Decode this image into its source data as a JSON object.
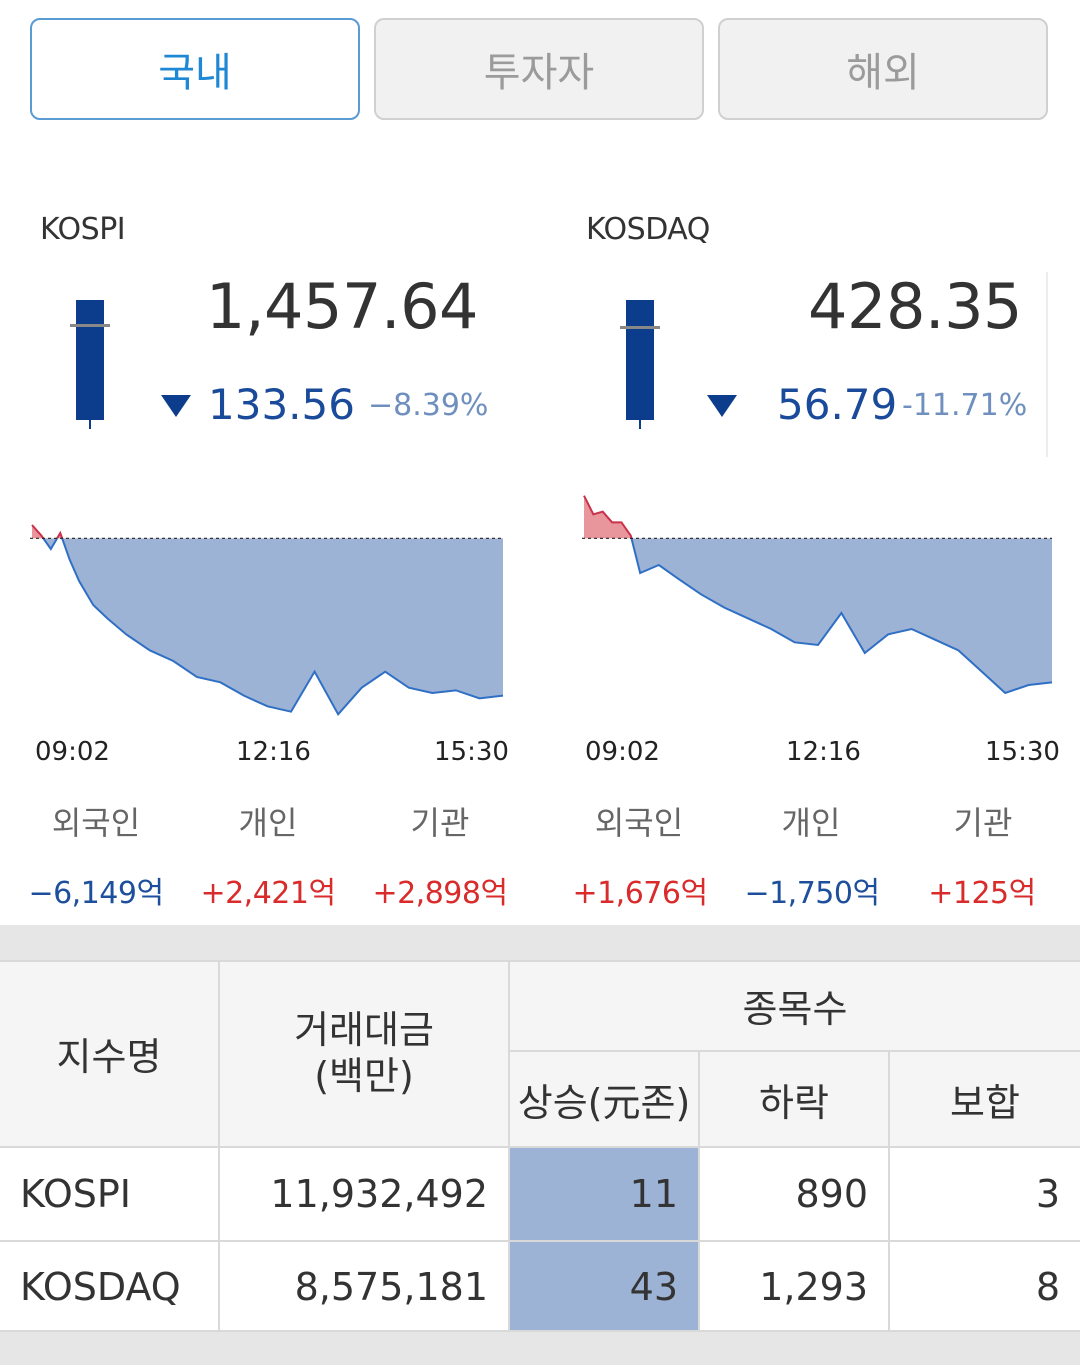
{
  "tabs": [
    {
      "label": "국내",
      "active": true
    },
    {
      "label": "투자자",
      "active": false
    },
    {
      "label": "해외",
      "active": false
    }
  ],
  "colors": {
    "accent": "#1e88d4",
    "down": "#1d4f9c",
    "up": "#d92b2b",
    "area_down": "#9db3d6",
    "area_up": "#e8959c"
  },
  "indices": [
    {
      "name": "KOSPI",
      "value": "1,457.64",
      "change": "133.56",
      "rate": "−8.39%",
      "times": [
        "09:02",
        "12:16",
        "15:30"
      ],
      "investors": [
        {
          "label": "외국인",
          "value": "−6,149억",
          "direction": "down"
        },
        {
          "label": "개인",
          "value": "+2,421억",
          "direction": "up"
        },
        {
          "label": "기관",
          "value": "+2,898억",
          "direction": "up"
        }
      ],
      "chart_data": {
        "type": "area",
        "x": [
          0,
          2,
          4,
          6,
          8,
          10,
          13,
          16,
          20,
          25,
          30,
          35,
          40,
          45,
          50,
          55,
          60,
          65,
          70,
          75,
          80,
          85,
          90,
          95,
          100
        ],
        "values": [
          0.5,
          0.1,
          -0.4,
          0.2,
          -0.8,
          -1.6,
          -2.5,
          -3.0,
          -3.6,
          -4.2,
          -4.6,
          -5.2,
          -5.4,
          -5.9,
          -6.3,
          -6.5,
          -5.0,
          -6.6,
          -5.6,
          -5.0,
          -5.6,
          -5.8,
          -5.7,
          -6.0,
          -5.9
        ],
        "baseline": 0
      }
    },
    {
      "name": "KOSDAQ",
      "value": "428.35",
      "change": "56.79",
      "rate": "-11.71%",
      "times": [
        "09:02",
        "12:16",
        "15:30"
      ],
      "investors": [
        {
          "label": "외국인",
          "value": "+1,676억",
          "direction": "up"
        },
        {
          "label": "개인",
          "value": "−1,750억",
          "direction": "down"
        },
        {
          "label": "기관",
          "value": "+125억",
          "direction": "up"
        }
      ],
      "chart_data": {
        "type": "area",
        "x": [
          0,
          2,
          4,
          6,
          8,
          10,
          12,
          16,
          20,
          25,
          30,
          35,
          40,
          45,
          50,
          55,
          60,
          65,
          70,
          75,
          80,
          85,
          90,
          95,
          100
        ],
        "values": [
          1.6,
          0.9,
          1.0,
          0.6,
          0.6,
          0.1,
          -1.3,
          -1.0,
          -1.5,
          -2.1,
          -2.6,
          -3.0,
          -3.4,
          -3.9,
          -4.0,
          -2.8,
          -4.3,
          -3.6,
          -3.4,
          -3.8,
          -4.2,
          -5.0,
          -5.8,
          -5.5,
          -5.4
        ],
        "baseline": 0
      }
    }
  ],
  "summary": {
    "headers": {
      "index_name": "지수명",
      "trade_amount": "거래대금\n(백만)",
      "stock_count": "종목수",
      "rise": "상승(元존)",
      "fall": "하락",
      "flat": "보합"
    },
    "rows": [
      {
        "name": "KOSPI",
        "amount": "11,932,492",
        "rise": "11",
        "fall": "890",
        "flat": "3"
      },
      {
        "name": "KOSDAQ",
        "amount": "8,575,181",
        "rise": "43",
        "fall": "1,293",
        "flat": "8"
      }
    ]
  }
}
